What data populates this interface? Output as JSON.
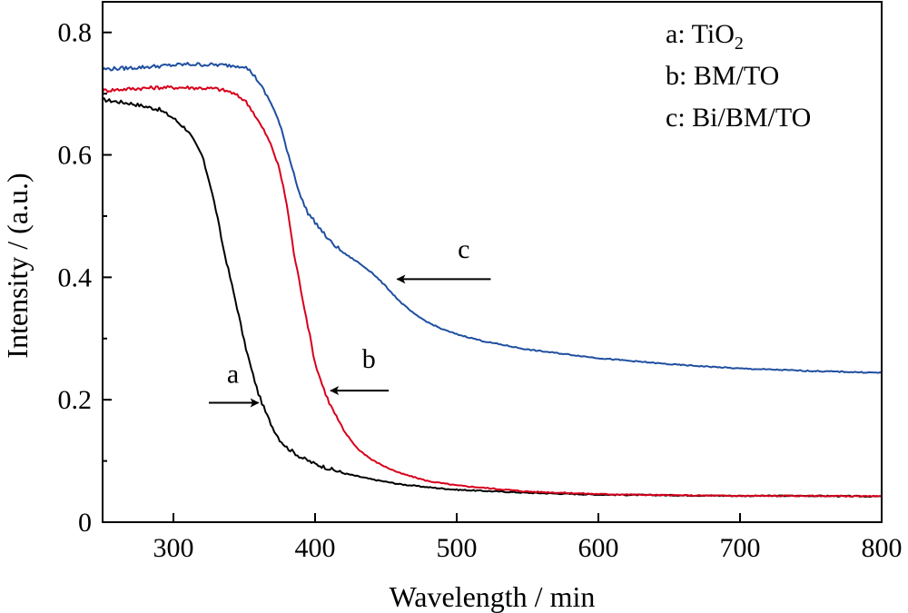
{
  "chart_data": {
    "type": "line",
    "title": "",
    "xlabel": "Wavelength / min",
    "ylabel": "Intensity / (a.u.)",
    "xlim": [
      250,
      800
    ],
    "ylim": [
      0,
      0.85
    ],
    "x_ticks": [
      300,
      400,
      500,
      600,
      700,
      800
    ],
    "x_tick_labels": [
      "300",
      "400",
      "500",
      "600",
      "700",
      "800"
    ],
    "y_ticks": [
      0,
      0.2,
      0.4,
      0.6,
      0.8
    ],
    "y_tick_labels": [
      "0",
      "0.2",
      "0.4",
      "0.6",
      "0.8"
    ],
    "grid": false,
    "legend_position": "top-right",
    "legend": [
      {
        "letter": "a:",
        "name": "TiO",
        "subscript": "2"
      },
      {
        "letter": "b:",
        "name": "BM/TO",
        "subscript": ""
      },
      {
        "letter": "c:",
        "name": "Bi/BM/TO",
        "subscript": ""
      }
    ],
    "series": [
      {
        "name": "a",
        "color": "#000000",
        "points": [
          [
            250,
            0.69
          ],
          [
            270,
            0.684
          ],
          [
            290,
            0.674
          ],
          [
            300,
            0.66
          ],
          [
            310,
            0.64
          ],
          [
            320,
            0.6
          ],
          [
            325,
            0.56
          ],
          [
            330,
            0.51
          ],
          [
            335,
            0.45
          ],
          [
            340,
            0.4
          ],
          [
            345,
            0.35
          ],
          [
            350,
            0.295
          ],
          [
            355,
            0.25
          ],
          [
            360,
            0.21
          ],
          [
            365,
            0.18
          ],
          [
            370,
            0.155
          ],
          [
            375,
            0.135
          ],
          [
            380,
            0.122
          ],
          [
            390,
            0.106
          ],
          [
            400,
            0.095
          ],
          [
            420,
            0.08
          ],
          [
            440,
            0.07
          ],
          [
            460,
            0.062
          ],
          [
            480,
            0.057
          ],
          [
            500,
            0.053
          ],
          [
            550,
            0.048
          ],
          [
            600,
            0.045
          ],
          [
            650,
            0.044
          ],
          [
            700,
            0.043
          ],
          [
            750,
            0.043
          ],
          [
            800,
            0.042
          ]
        ]
      },
      {
        "name": "b",
        "color": "#d8001c",
        "points": [
          [
            250,
            0.705
          ],
          [
            270,
            0.708
          ],
          [
            290,
            0.71
          ],
          [
            310,
            0.71
          ],
          [
            330,
            0.708
          ],
          [
            340,
            0.703
          ],
          [
            350,
            0.69
          ],
          [
            355,
            0.675
          ],
          [
            360,
            0.655
          ],
          [
            365,
            0.635
          ],
          [
            370,
            0.61
          ],
          [
            375,
            0.575
          ],
          [
            380,
            0.52
          ],
          [
            385,
            0.44
          ],
          [
            390,
            0.38
          ],
          [
            395,
            0.32
          ],
          [
            400,
            0.26
          ],
          [
            405,
            0.225
          ],
          [
            410,
            0.195
          ],
          [
            420,
            0.15
          ],
          [
            430,
            0.12
          ],
          [
            440,
            0.102
          ],
          [
            450,
            0.09
          ],
          [
            460,
            0.08
          ],
          [
            480,
            0.067
          ],
          [
            500,
            0.06
          ],
          [
            550,
            0.05
          ],
          [
            600,
            0.046
          ],
          [
            650,
            0.044
          ],
          [
            700,
            0.043
          ],
          [
            750,
            0.043
          ],
          [
            800,
            0.042
          ]
        ]
      },
      {
        "name": "c",
        "color": "#1f4fa0",
        "points": [
          [
            250,
            0.74
          ],
          [
            270,
            0.742
          ],
          [
            290,
            0.745
          ],
          [
            310,
            0.748
          ],
          [
            330,
            0.747
          ],
          [
            350,
            0.745
          ],
          [
            355,
            0.735
          ],
          [
            360,
            0.72
          ],
          [
            365,
            0.7
          ],
          [
            370,
            0.68
          ],
          [
            375,
            0.65
          ],
          [
            380,
            0.61
          ],
          [
            385,
            0.57
          ],
          [
            390,
            0.53
          ],
          [
            395,
            0.505
          ],
          [
            400,
            0.49
          ],
          [
            405,
            0.475
          ],
          [
            410,
            0.46
          ],
          [
            420,
            0.44
          ],
          [
            430,
            0.425
          ],
          [
            440,
            0.408
          ],
          [
            450,
            0.385
          ],
          [
            460,
            0.36
          ],
          [
            470,
            0.34
          ],
          [
            480,
            0.326
          ],
          [
            490,
            0.315
          ],
          [
            500,
            0.307
          ],
          [
            520,
            0.295
          ],
          [
            550,
            0.282
          ],
          [
            600,
            0.268
          ],
          [
            650,
            0.258
          ],
          [
            700,
            0.251
          ],
          [
            750,
            0.247
          ],
          [
            800,
            0.244
          ]
        ]
      }
    ],
    "annotations": [
      {
        "label": "a",
        "text_x": 342,
        "text_y": 0.228,
        "arrow_from": [
          325,
          0.195
        ],
        "arrow_to": [
          360,
          0.195
        ]
      },
      {
        "label": "b",
        "text_x": 438,
        "text_y": 0.252,
        "arrow_from": [
          452,
          0.215
        ],
        "arrow_to": [
          411,
          0.215
        ]
      },
      {
        "label": "c",
        "text_x": 505,
        "text_y": 0.432,
        "arrow_from": [
          524,
          0.397
        ],
        "arrow_to": [
          458,
          0.397
        ]
      }
    ]
  }
}
